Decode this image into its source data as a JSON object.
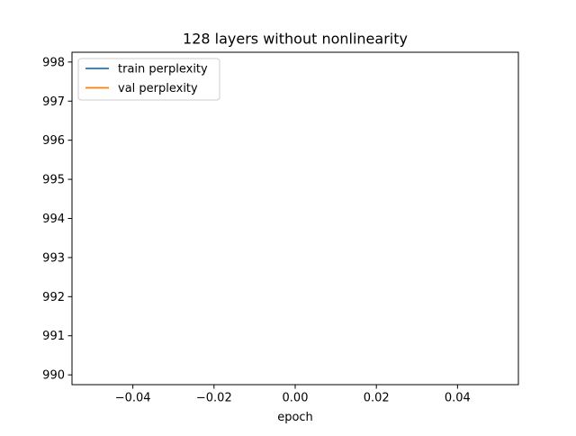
{
  "chart_data": {
    "type": "line",
    "title": "128 layers without nonlinearity",
    "xlabel": "epoch",
    "ylabel": "",
    "xlim": [
      -0.055,
      0.055
    ],
    "ylim": [
      989.75,
      998.25
    ],
    "x_ticks": [
      -0.04,
      -0.02,
      0.0,
      0.02,
      0.04
    ],
    "x_tick_labels": [
      "−0.04",
      "−0.02",
      "0.00",
      "0.02",
      "0.04"
    ],
    "y_ticks": [
      990,
      991,
      992,
      993,
      994,
      995,
      996,
      997,
      998
    ],
    "y_tick_labels": [
      "990",
      "991",
      "992",
      "993",
      "994",
      "995",
      "996",
      "997",
      "998"
    ],
    "grid": false,
    "legend_position": "upper-left",
    "series": [
      {
        "name": "train perplexity",
        "color": "#1f77b4",
        "x": [],
        "y": []
      },
      {
        "name": "val perplexity",
        "color": "#ff7f0e",
        "x": [],
        "y": []
      }
    ]
  }
}
